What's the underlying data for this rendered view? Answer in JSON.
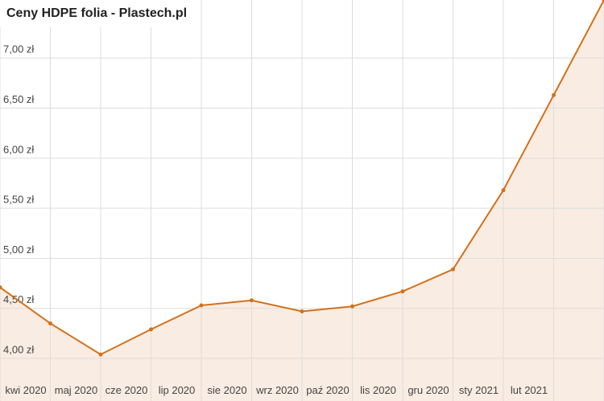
{
  "chart_data": {
    "type": "line",
    "title": "Ceny HDPE folia - Plastech.pl",
    "categories": [
      null,
      "kwi 2020",
      "maj 2020",
      "cze 2020",
      "lip 2020",
      "sie 2020",
      "wrz 2020",
      "paź 2020",
      "lis 2020",
      "gru 2020",
      "sty 2021",
      "lut 2021",
      null
    ],
    "series": [
      {
        "name": "HDPE folia",
        "color": "#d4711a",
        "values": [
          4.71,
          4.35,
          4.04,
          4.29,
          4.53,
          4.58,
          4.47,
          4.52,
          4.67,
          4.89,
          5.68,
          6.63,
          7.58
        ]
      }
    ],
    "area_color": "#f9ece2",
    "ylim": [
      3.575,
      7.58
    ],
    "yticks": [
      {
        "value": 4,
        "label": "4,00 zł"
      },
      {
        "value": 4.5,
        "label": "4,50 zł"
      },
      {
        "value": 5,
        "label": "5,00 zł"
      },
      {
        "value": 5.5,
        "label": "5,50 zł"
      },
      {
        "value": 6,
        "label": "6,00 zł"
      },
      {
        "value": 6.5,
        "label": "6,50 zł"
      },
      {
        "value": 7,
        "label": "7,00 zł"
      }
    ],
    "grid": true
  }
}
